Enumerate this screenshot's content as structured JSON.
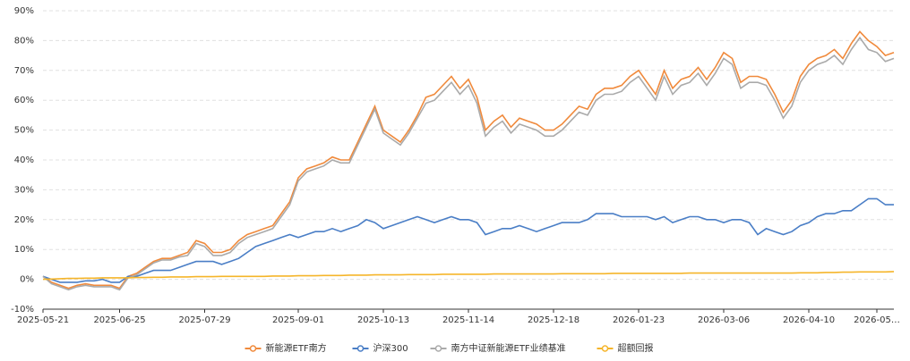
{
  "chart_data": {
    "type": "line",
    "x": [
      "2025-05-21",
      null,
      null,
      null,
      null,
      null,
      null,
      null,
      null,
      "2025-06-25",
      null,
      null,
      null,
      null,
      null,
      null,
      null,
      null,
      null,
      "2025-07-29",
      null,
      null,
      null,
      null,
      null,
      null,
      null,
      null,
      null,
      null,
      "2025-09-01",
      null,
      null,
      null,
      null,
      null,
      null,
      null,
      null,
      null,
      "2025-10-13",
      null,
      null,
      null,
      null,
      null,
      null,
      null,
      null,
      null,
      "2025-11-14",
      null,
      null,
      null,
      null,
      null,
      null,
      null,
      null,
      null,
      "2025-12-18",
      null,
      null,
      null,
      null,
      null,
      null,
      null,
      null,
      null,
      "2026-01-23",
      null,
      null,
      null,
      null,
      null,
      null,
      null,
      null,
      null,
      "2026-03-06",
      null,
      null,
      null,
      null,
      null,
      null,
      null,
      null,
      null,
      "2026-04-10",
      null,
      null,
      null,
      null,
      null,
      null,
      null,
      "2026-05…",
      null,
      null
    ],
    "series": [
      {
        "name": "新能源ETF南方",
        "color": "#f08a3c",
        "values": [
          1,
          -1,
          -2,
          -3,
          -2,
          -1.5,
          -2,
          -2,
          -2,
          -3,
          1,
          2,
          4,
          6,
          7,
          7,
          8,
          9,
          13,
          12,
          9,
          9,
          10,
          13,
          15,
          16,
          17,
          18,
          22,
          26,
          34,
          37,
          38,
          39,
          41,
          40,
          40,
          46,
          52,
          58,
          50,
          48,
          46,
          50,
          55,
          61,
          62,
          65,
          68,
          64,
          67,
          61,
          50,
          53,
          55,
          51,
          54,
          53,
          52,
          50,
          50,
          52,
          55,
          58,
          57,
          62,
          64,
          64,
          65,
          68,
          70,
          66,
          62,
          70,
          64,
          67,
          68,
          71,
          67,
          71,
          76,
          74,
          66,
          68,
          68,
          67,
          62,
          56,
          60,
          68,
          72,
          74,
          75,
          77,
          74,
          79,
          83,
          80,
          78,
          75,
          76
        ]
      },
      {
        "name": "沪深300",
        "color": "#4a7ec6",
        "values": [
          1,
          0,
          -1,
          -1,
          -1,
          -0.5,
          -0.5,
          0,
          -1,
          -1,
          1,
          1,
          2,
          3,
          3,
          3,
          4,
          5,
          6,
          6,
          6,
          5,
          6,
          7,
          9,
          11,
          12,
          13,
          14,
          15,
          14,
          15,
          16,
          16,
          17,
          16,
          17,
          18,
          20,
          19,
          17,
          18,
          19,
          20,
          21,
          20,
          19,
          20,
          21,
          20,
          20,
          19,
          15,
          16,
          17,
          17,
          18,
          17,
          16,
          17,
          18,
          19,
          19,
          19,
          20,
          22,
          22,
          22,
          21,
          21,
          21,
          21,
          20,
          21,
          19,
          20,
          21,
          21,
          20,
          20,
          19,
          20,
          20,
          19,
          15,
          17,
          16,
          15,
          16,
          18,
          19,
          21,
          22,
          22,
          23,
          23,
          25,
          27,
          27,
          25,
          25
        ]
      },
      {
        "name": "南方中证新能源ETF业绩基准",
        "color": "#aaaaaa",
        "values": [
          1,
          -1.5,
          -2.5,
          -3.5,
          -2.5,
          -2,
          -2.5,
          -2.5,
          -2.5,
          -3.5,
          0.5,
          1.5,
          3.5,
          5.5,
          6.5,
          6.5,
          7.5,
          8,
          12,
          11,
          8,
          8,
          9,
          12,
          14,
          15,
          16,
          17,
          21,
          25,
          33,
          36,
          37,
          38,
          40,
          39,
          39,
          45,
          51,
          57,
          49,
          47,
          45,
          49,
          54,
          59,
          60,
          63,
          66,
          62,
          65,
          59,
          48,
          51,
          53,
          49,
          52,
          51,
          50,
          48,
          48,
          50,
          53,
          56,
          55,
          60,
          62,
          62,
          63,
          66,
          68,
          64,
          60,
          68,
          62,
          65,
          66,
          69,
          65,
          69,
          74,
          72,
          64,
          66,
          66,
          65,
          60,
          54,
          58,
          66,
          70,
          72,
          73,
          75,
          72,
          77,
          81,
          77,
          76,
          73,
          74
        ]
      },
      {
        "name": "超额回报",
        "color": "#f5b52a",
        "values": [
          0,
          0.1,
          0.2,
          0.3,
          0.3,
          0.4,
          0.4,
          0.5,
          0.5,
          0.5,
          0.5,
          0.6,
          0.6,
          0.7,
          0.7,
          0.8,
          0.8,
          0.8,
          0.9,
          0.9,
          0.9,
          1,
          1,
          1,
          1,
          1,
          1,
          1.1,
          1.1,
          1.1,
          1.2,
          1.2,
          1.2,
          1.3,
          1.3,
          1.3,
          1.4,
          1.4,
          1.4,
          1.5,
          1.5,
          1.5,
          1.5,
          1.6,
          1.6,
          1.6,
          1.6,
          1.7,
          1.7,
          1.7,
          1.7,
          1.7,
          1.7,
          1.8,
          1.8,
          1.8,
          1.8,
          1.8,
          1.8,
          1.8,
          1.8,
          1.9,
          1.9,
          1.9,
          1.9,
          1.9,
          1.9,
          2,
          2,
          2,
          2,
          2,
          2,
          2,
          2,
          2,
          2.1,
          2.1,
          2.1,
          2.1,
          2.1,
          2.1,
          2.1,
          2.1,
          2.1,
          2.1,
          2.1,
          2.1,
          2.1,
          2.2,
          2.2,
          2.2,
          2.3,
          2.3,
          2.4,
          2.4,
          2.5,
          2.5,
          2.5,
          2.5,
          2.6
        ]
      }
    ],
    "ylim": [
      -10,
      90
    ],
    "yticks": [
      {
        "value": -10,
        "label": "-10%"
      },
      {
        "value": 0,
        "label": "0%"
      },
      {
        "value": 10,
        "label": "10%"
      },
      {
        "value": 20,
        "label": "20%"
      },
      {
        "value": 30,
        "label": "30%"
      },
      {
        "value": 40,
        "label": "40%"
      },
      {
        "value": 50,
        "label": "50%"
      },
      {
        "value": 60,
        "label": "60%"
      },
      {
        "value": 70,
        "label": "70%"
      },
      {
        "value": 80,
        "label": "80%"
      },
      {
        "value": 90,
        "label": "90%"
      }
    ],
    "grid": true,
    "legend": "bottom"
  }
}
